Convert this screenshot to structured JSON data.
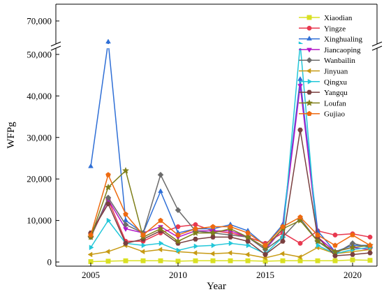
{
  "chart_data": {
    "type": "line",
    "title": "",
    "xlabel": "Year",
    "ylabel": "WFPg",
    "x": [
      2005,
      2006,
      2007,
      2008,
      2009,
      2010,
      2011,
      2012,
      2013,
      2014,
      2015,
      2016,
      2017,
      2018,
      2019,
      2020,
      2021
    ],
    "xlim": [
      2005,
      2021
    ],
    "x_ticks": [
      2005,
      2010,
      2015,
      2020
    ],
    "x_tick_labels": [
      "2005",
      "2010",
      "2015",
      "2020"
    ],
    "ylim": [
      -1000,
      72000
    ],
    "y_break": [
      52000,
      67000
    ],
    "y_ticks": [
      0,
      10000,
      20000,
      30000,
      40000,
      50000,
      70000
    ],
    "y_tick_labels": [
      "0",
      "10,000",
      "20,000",
      "30,000",
      "40,000",
      "50,000",
      "70,000"
    ],
    "legend_position": "top-right",
    "grid": false,
    "series": [
      {
        "name": "Xiaodian",
        "color": "#d9e021",
        "marker": "square",
        "values": [
          100,
          200,
          300,
          300,
          300,
          200,
          300,
          300,
          300,
          300,
          200,
          300,
          300,
          300,
          300,
          500,
          400
        ]
      },
      {
        "name": "Yingze",
        "color": "#e8384f",
        "marker": "circle",
        "values": [
          6000,
          15000,
          5000,
          5000,
          7000,
          8500,
          9000,
          7500,
          7000,
          6000,
          4500,
          7000,
          4500,
          7500,
          6500,
          6800,
          6000
        ]
      },
      {
        "name": "Xinghualing",
        "color": "#2f6fd6",
        "marker": "triangle-up",
        "values": [
          23000,
          67500,
          10000,
          7000,
          17000,
          7000,
          8000,
          8000,
          9000,
          7500,
          4000,
          9000,
          44000,
          7500,
          2500,
          4000,
          4000
        ]
      },
      {
        "name": "Jiancaoping",
        "color": "#b217c8",
        "marker": "triangle-down",
        "values": [
          6500,
          15000,
          8000,
          7000,
          8500,
          6000,
          7500,
          7500,
          7500,
          6000,
          3000,
          8000,
          42500,
          6000,
          2500,
          3500,
          3000
        ]
      },
      {
        "name": "Wanbailin",
        "color": "#6b6b6b",
        "marker": "diamond",
        "values": [
          6000,
          15500,
          9000,
          7000,
          21000,
          12500,
          7500,
          7000,
          6500,
          6000,
          3000,
          6000,
          10500,
          5000,
          2000,
          4500,
          3500
        ]
      },
      {
        "name": "Jinyuan",
        "color": "#c79a14",
        "marker": "triangle-left",
        "values": [
          1800,
          2500,
          4000,
          2500,
          3000,
          2500,
          2200,
          2000,
          2200,
          1800,
          1000,
          2000,
          1200,
          3500,
          2000,
          2500,
          3000
        ]
      },
      {
        "name": "Qingxu",
        "color": "#22c7d9",
        "marker": "triangle-right",
        "values": [
          3500,
          10000,
          4500,
          4000,
          4500,
          2800,
          3800,
          4000,
          4500,
          4000,
          2000,
          6000,
          52500,
          4000,
          2000,
          3000,
          3500
        ]
      },
      {
        "name": "Yangqu",
        "color": "#7a3f3f",
        "marker": "hexagon",
        "values": [
          7000,
          14000,
          4500,
          5500,
          7500,
          4500,
          5500,
          6000,
          6000,
          5000,
          1800,
          5000,
          31800,
          6000,
          1500,
          1800,
          2200
        ]
      },
      {
        "name": "Loufan",
        "color": "#7f7f1a",
        "marker": "star",
        "values": [
          6000,
          18000,
          22000,
          6000,
          8000,
          5000,
          7000,
          7000,
          8000,
          6000,
          3500,
          8000,
          10000,
          5000,
          2500,
          3500,
          4000
        ]
      },
      {
        "name": "Gujiao",
        "color": "#ee6a10",
        "marker": "pentagon",
        "values": [
          6500,
          21000,
          11500,
          6500,
          10000,
          6500,
          8000,
          8500,
          8500,
          7000,
          4000,
          8500,
          10800,
          6500,
          4000,
          6500,
          4000
        ]
      }
    ]
  }
}
